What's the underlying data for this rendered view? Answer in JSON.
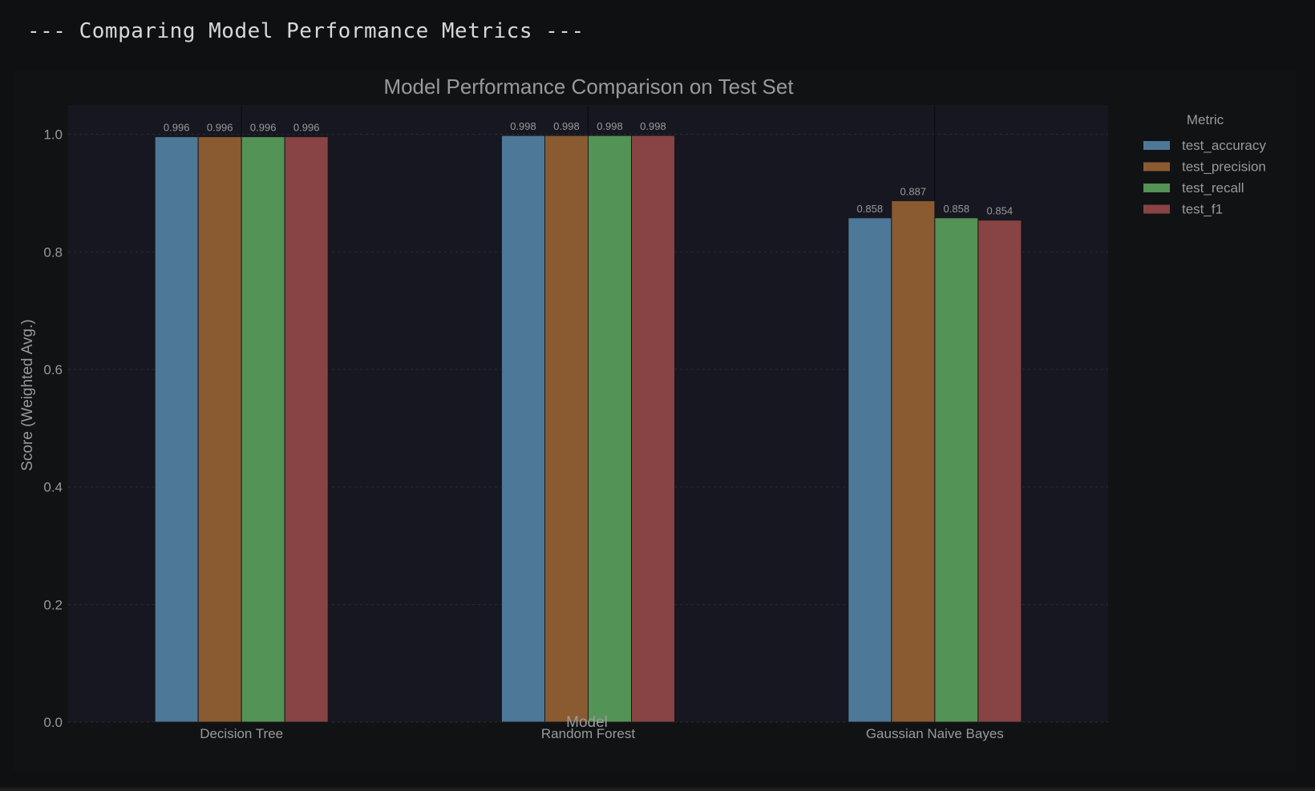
{
  "header": {
    "text": "--- Comparing Model Performance Metrics ---"
  },
  "chart_data": {
    "type": "bar",
    "title": "Model Performance Comparison on Test Set",
    "xlabel": "Model",
    "ylabel": "Score (Weighted Avg.)",
    "categories": [
      "Decision Tree",
      "Random Forest",
      "Gaussian Naive Bayes"
    ],
    "series": [
      {
        "name": "test_accuracy",
        "values": [
          0.996,
          0.998,
          0.858
        ],
        "labels": [
          "0.996",
          "0.998",
          "0.858"
        ],
        "color": "#4e7898"
      },
      {
        "name": "test_precision",
        "values": [
          0.996,
          0.998,
          0.887
        ],
        "labels": [
          "0.996",
          "0.998",
          "0.887"
        ],
        "color": "#8a5a31"
      },
      {
        "name": "test_recall",
        "values": [
          0.996,
          0.998,
          0.858
        ],
        "labels": [
          "0.996",
          "0.998",
          "0.858"
        ],
        "color": "#539356"
      },
      {
        "name": "test_f1",
        "values": [
          0.996,
          0.998,
          0.854
        ],
        "labels": [
          "0.996",
          "0.998",
          "0.854"
        ],
        "color": "#884345"
      }
    ],
    "ylim": [
      0,
      1.05
    ],
    "yticks": [
      0.0,
      0.2,
      0.4,
      0.6,
      0.8,
      1.0
    ],
    "ytick_labels": [
      "0.0",
      "0.2",
      "0.4",
      "0.6",
      "0.8",
      "1.0"
    ],
    "grid": true,
    "legend": {
      "title": "Metric",
      "placement": "outside-top-right"
    },
    "colors": {
      "plot_bg": "#161720",
      "text": "#9a9a9a",
      "grid": "#2c2d36"
    }
  }
}
